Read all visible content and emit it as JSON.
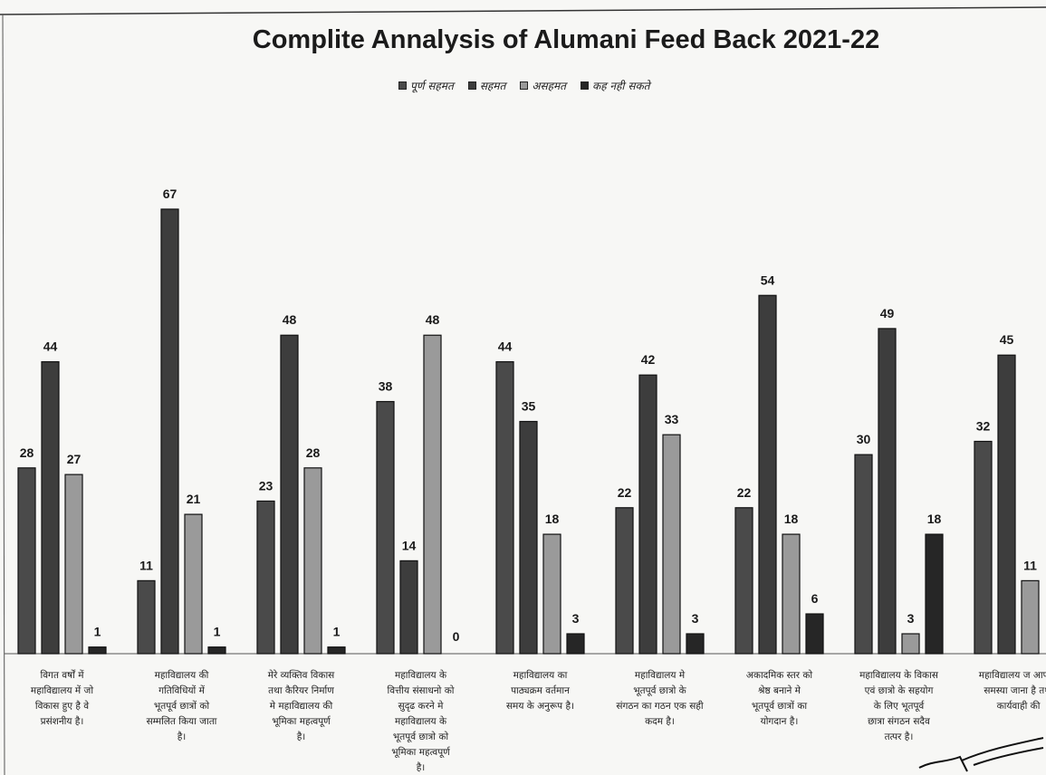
{
  "chart_data": {
    "type": "bar",
    "title": "Complite Annalysis of Alumani Feed Back 2021-22",
    "legend_position": "top",
    "grid": false,
    "ylim": [
      0,
      70
    ],
    "categories": [
      "विगत वर्षों में महाविद्यालय में जो विकास हुए है वे प्रसंशनीय है।",
      "महाविद्यालय की गतिविधियों में भूतपूर्व छात्रों को सम्मलित किया जाता है।",
      "मेरे व्यक्तिव विकास तथा कैरियर निर्माण मे महाविद्यालय की भूमिका महत्वपूर्ण है।",
      "महाविद्यालय के वित्तीय संसाधनो को सुदृढ करने मे महाविद्यालय के भूतपूर्व छात्रो को भूमिका महत्वपूर्ण है।",
      "महाविद्यालय का पाठ्यक्रम वर्तमान समय के अनुरूप है।",
      "महाविद्यालय मे भूतपूर्व छात्रो के संगठन का गठन एक सही कदम है।",
      "अकादमिक स्तर को श्रेष्ठ बनाने मे भूतपूर्व छात्रों का योगदान है।",
      "महाविद्यालय के विकास एवं छात्रो के सहयोग के लिए भूतपूर्व छात्रा संगठन सदैव तत्पर है।",
      "महाविद्यालय ज आपकी समस्या जाना है तथा कार्यवाही की"
    ],
    "series": [
      {
        "name": "पूर्ण सहमत",
        "color": "#4a4a4a",
        "values": [
          28,
          11,
          23,
          38,
          44,
          22,
          22,
          30,
          32
        ]
      },
      {
        "name": "सहमत",
        "color": "#3d3d3d",
        "values": [
          44,
          67,
          48,
          14,
          35,
          42,
          54,
          49,
          45
        ]
      },
      {
        "name": "असहमत",
        "color": "#9a9a9a",
        "values": [
          27,
          21,
          28,
          48,
          18,
          33,
          18,
          3,
          11
        ]
      },
      {
        "name": "कह नही सकते",
        "color": "#262626",
        "values": [
          1,
          1,
          1,
          0,
          3,
          3,
          6,
          18,
          null
        ]
      }
    ]
  }
}
